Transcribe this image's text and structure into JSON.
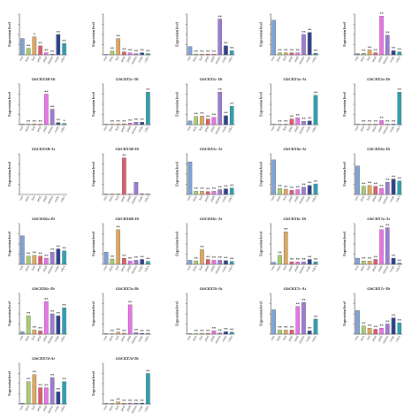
{
  "chart_data": {
    "type": "bar",
    "layout": "grid of 27 bar panels in 6 rows, 5 columns",
    "categories": [
      "root",
      "stem",
      "leaf",
      "petal",
      "pistil",
      "stamen",
      "ovule",
      "calyx"
    ],
    "ylabel": "Expression level",
    "bar_colors": [
      "#7ea3d8",
      "#a6cf6b",
      "#e1a75a",
      "#e35a6c",
      "#eb71e8",
      "#9d7bd4",
      "#2b3f8c",
      "#2aa0b0"
    ],
    "panels": [
      {
        "title": "",
        "values": [
          0.4,
          0.16,
          0.44,
          0.22,
          0.05,
          0.02,
          0.5,
          0.28
        ],
        "marks": [
          "",
          "**",
          "*",
          "**",
          "**",
          "**",
          "**",
          "**"
        ]
      },
      {
        "title": "",
        "values": [
          0.01,
          0.09,
          0.4,
          0.07,
          0.05,
          0.03,
          0.05,
          0.03
        ],
        "marks": [
          "",
          "**",
          "**",
          "**",
          "**",
          "**",
          "**",
          "**"
        ]
      },
      {
        "title": "",
        "values": [
          0.2,
          0.02,
          0.02,
          0.02,
          0.02,
          0.88,
          0.22,
          0.1
        ],
        "marks": [
          "",
          "**",
          "**",
          "**",
          "**",
          "**",
          "**",
          "**"
        ]
      },
      {
        "title": "",
        "values": [
          0.85,
          0.05,
          0.05,
          0.05,
          0.05,
          0.5,
          0.55,
          0.04
        ],
        "marks": [
          "",
          "**",
          "**",
          "**",
          "**",
          "**",
          "**",
          "**"
        ]
      },
      {
        "title": "",
        "values": [
          0.03,
          0.04,
          0.12,
          0.05,
          0.95,
          0.48,
          0.1,
          0.07
        ],
        "marks": [
          "",
          "**",
          "**",
          "**",
          "**",
          "**",
          "**",
          "**"
        ]
      },
      {
        "title": "GhCKX3B-Dt",
        "values": [
          0.01,
          0.02,
          0.02,
          0.01,
          0.75,
          0.38,
          0.05,
          0.03
        ],
        "marks": [
          "",
          "**",
          "**",
          "**",
          "**",
          "**",
          "**",
          "*"
        ]
      },
      {
        "title": "GhCKX5c-Dt",
        "values": [
          0.01,
          0.02,
          0.02,
          0.02,
          0.04,
          0.06,
          0.06,
          0.8
        ],
        "marks": [
          "",
          "**",
          "**",
          "**",
          "**",
          "**",
          "**",
          "**"
        ]
      },
      {
        "title": "GhCKX5c-Dt",
        "values": [
          0.09,
          0.2,
          0.21,
          0.14,
          0.18,
          0.8,
          0.22,
          0.45
        ],
        "marks": [
          "",
          "**",
          "**",
          "**",
          "**",
          "**",
          "**",
          "**"
        ]
      },
      {
        "title": "GhCKX5a-At",
        "values": [
          0.01,
          0.01,
          0.01,
          0.14,
          0.17,
          0.08,
          0.09,
          0.72
        ],
        "marks": [
          "",
          "**",
          "**",
          "**",
          "**",
          "**",
          "**",
          "**"
        ]
      },
      {
        "title": "GhCKX5a-Dt",
        "values": [
          0.01,
          0.01,
          0.01,
          0.01,
          0.1,
          0.01,
          0.01,
          0.8
        ],
        "marks": [
          "",
          "**",
          "**",
          "**",
          "**",
          "**",
          "**",
          "**"
        ]
      },
      {
        "title": "GhCKX5B-At",
        "values": [
          0,
          0,
          0,
          0,
          0,
          0,
          0,
          0
        ],
        "marks": [
          "",
          "",
          "",
          "",
          "",
          "",
          "",
          ""
        ]
      },
      {
        "title": "GhCKX5B-Dt",
        "values": [
          0.01,
          0.01,
          0.01,
          0.9,
          0.01,
          0.3,
          0.01,
          0.01
        ],
        "marks": [
          "",
          "",
          "",
          "**",
          "",
          "",
          "",
          ""
        ]
      },
      {
        "title": "GhCKX5c-At",
        "values": [
          0.8,
          0.08,
          0.08,
          0.07,
          0.08,
          0.12,
          0.14,
          0.16
        ],
        "marks": [
          "",
          "**",
          "**",
          "**",
          "**",
          "**",
          "**",
          "**"
        ]
      },
      {
        "title": "GhCKX6a-At",
        "values": [
          0.85,
          0.15,
          0.13,
          0.1,
          0.12,
          0.18,
          0.22,
          0.26
        ],
        "marks": [
          "",
          "**",
          "**",
          "**",
          "**",
          "**",
          "**",
          "**"
        ]
      },
      {
        "title": "GhCKX6a-Dt",
        "values": [
          0.7,
          0.2,
          0.22,
          0.2,
          0.15,
          0.3,
          0.38,
          0.33
        ],
        "marks": [
          "",
          "**",
          "**",
          "**",
          "**",
          "**",
          "**",
          "**"
        ]
      },
      {
        "title": "GhCKX6a-Dt",
        "values": [
          0.7,
          0.2,
          0.22,
          0.2,
          0.15,
          0.3,
          0.38,
          0.33
        ],
        "marks": [
          "",
          "**",
          "**",
          "**",
          "**",
          "**",
          "**",
          "**"
        ]
      },
      {
        "title": "GhCKX6B-Dt",
        "values": [
          0.3,
          0.13,
          0.85,
          0.15,
          0.08,
          0.1,
          0.12,
          0.07
        ],
        "marks": [
          "",
          "**",
          "**",
          "**",
          "**",
          "**",
          "**",
          "**"
        ]
      },
      {
        "title": "GhCKX6c-At",
        "values": [
          0.1,
          0.08,
          0.36,
          0.12,
          0.1,
          0.1,
          0.09,
          0.07
        ],
        "marks": [
          "",
          "**",
          "**",
          "**",
          "**",
          "**",
          "**",
          "**"
        ]
      },
      {
        "title": "GhCKX6c-Dt",
        "values": [
          0.05,
          0.22,
          0.8,
          0.06,
          0.06,
          0.06,
          0.12,
          0.06
        ],
        "marks": [
          "",
          "**",
          "**",
          "**",
          "**",
          "**",
          "**",
          "**"
        ]
      },
      {
        "title": "GhCKX7a-At",
        "values": [
          0.15,
          0.08,
          0.08,
          0.12,
          0.85,
          0.9,
          0.15,
          0.03
        ],
        "marks": [
          "",
          "**",
          "**",
          "**",
          "**",
          "**",
          "**",
          "**"
        ]
      },
      {
        "title": "GhCKX6c-Dt",
        "values": [
          0.06,
          0.45,
          0.1,
          0.08,
          0.8,
          0.5,
          0.45,
          0.65
        ],
        "marks": [
          "",
          "**",
          "**",
          "**",
          "**",
          "**",
          "**",
          "**"
        ]
      },
      {
        "title": "GhCKX7a-Dt",
        "values": [
          0.01,
          0.01,
          0.05,
          0.02,
          0.72,
          0.04,
          0.02,
          0.02
        ],
        "marks": [
          "",
          "**",
          "**",
          "**",
          "**",
          "**",
          "**",
          "**"
        ]
      },
      {
        "title": "GhCKX7b-At",
        "values": [
          0.01,
          0.01,
          0.02,
          0.02,
          0.08,
          0.03,
          0.06,
          0.05
        ],
        "marks": [
          "",
          "**",
          "**",
          "**",
          "**",
          "**",
          "**",
          "**"
        ]
      },
      {
        "title": "GhCKX7c-At",
        "values": [
          0.6,
          0.1,
          0.1,
          0.1,
          0.68,
          0.78,
          0.08,
          0.37
        ],
        "marks": [
          "",
          "**",
          "**",
          "**",
          "**",
          "**",
          "**",
          "**"
        ]
      },
      {
        "title": "GhCKX7c-Dt",
        "values": [
          0.58,
          0.2,
          0.15,
          0.12,
          0.15,
          0.25,
          0.4,
          0.28
        ],
        "marks": [
          "",
          "**",
          "**",
          "**",
          "**",
          "**",
          "**",
          "**"
        ]
      },
      {
        "title": "GhCKX7d-At",
        "values": [
          0.02,
          0.55,
          0.72,
          0.4,
          0.4,
          0.65,
          0.3,
          0.55
        ],
        "marks": [
          "",
          "**",
          "**",
          "**",
          "**",
          "**",
          "**",
          "**"
        ]
      },
      {
        "title": "GhCKX7d-Dt",
        "values": [
          0.01,
          0.01,
          0.05,
          0.01,
          0.02,
          0.02,
          0.02,
          0.75
        ],
        "marks": [
          "",
          "**",
          "**",
          "**",
          "**",
          "**",
          "**",
          "**"
        ]
      }
    ]
  }
}
